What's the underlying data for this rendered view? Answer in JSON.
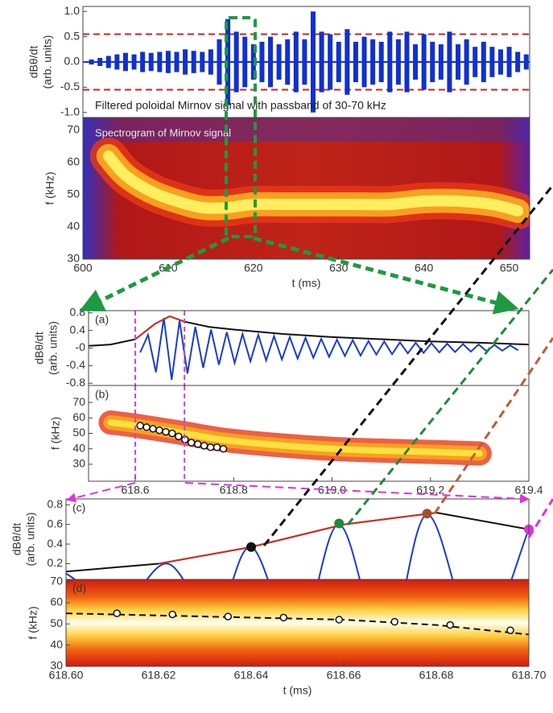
{
  "chart_data": [
    {
      "type": "signal",
      "ylabel": [
        "dBθ/dt",
        "(arb. units)"
      ],
      "annotation": "Filtered poloidal Mirnov signal with passband of 30-70 kHz",
      "xlim": [
        600,
        652.4
      ],
      "ylim": [
        -1.1,
        1.1
      ],
      "yticks": [
        {
          "value": 1.0,
          "label": "1.0"
        },
        {
          "value": 0.5,
          "label": "0.5"
        },
        {
          "value": 0.0,
          "label": "0.0"
        },
        {
          "value": -0.5,
          "label": "-0.5"
        },
        {
          "value": -1.0,
          "label": "-1.0"
        }
      ],
      "hlines": [
        0.55,
        -0.55
      ],
      "hline_color": "#cc2222",
      "series": [
        {
          "style": "bars",
          "color": "#1030d0",
          "x": [
            601,
            602,
            603,
            604,
            605,
            606,
            607,
            608,
            609,
            610,
            611,
            612,
            613,
            614,
            615,
            616,
            617,
            618,
            619,
            620,
            621,
            622,
            623,
            624,
            625,
            626,
            627,
            628,
            629,
            630,
            631,
            632,
            633,
            634,
            635,
            636,
            637,
            638,
            639,
            640,
            641,
            642,
            643,
            644,
            645,
            646,
            647,
            648,
            649,
            650,
            651,
            652
          ],
          "values": [
            0.05,
            0.08,
            0.12,
            0.15,
            0.18,
            0.15,
            0.2,
            0.18,
            0.2,
            0.22,
            0.2,
            0.25,
            0.22,
            0.2,
            0.25,
            0.45,
            0.85,
            0.6,
            0.5,
            0.35,
            0.4,
            0.5,
            0.35,
            0.45,
            0.6,
            0.45,
            1.0,
            0.6,
            0.55,
            0.4,
            0.65,
            0.4,
            0.5,
            0.45,
            0.4,
            0.6,
            0.45,
            0.6,
            0.35,
            0.55,
            0.4,
            0.35,
            0.6,
            0.35,
            0.45,
            0.3,
            0.4,
            0.3,
            0.25,
            0.3,
            0.2,
            0.15
          ]
        }
      ]
    },
    {
      "type": "spectrogram",
      "ylabel": [
        "f (kHz)"
      ],
      "annotation": "Spectrogram of Mirnov signal",
      "xlabel": "t (ms)",
      "xlim": [
        600,
        652.4
      ],
      "ylim": [
        30,
        74
      ],
      "xticks": [
        600,
        610,
        620,
        630,
        640,
        650
      ],
      "yticks": [
        30,
        40,
        50,
        60,
        70
      ],
      "series": [
        {
          "style": "band",
          "color": "#ffee60",
          "x": [
            603,
            605,
            608,
            611,
            614,
            617,
            620,
            624,
            628,
            632,
            636,
            640,
            644,
            648,
            651
          ],
          "values": [
            62,
            56,
            51,
            48,
            46,
            46,
            47,
            47,
            47,
            47,
            47,
            48,
            48,
            47,
            45
          ]
        }
      ]
    },
    {
      "type": "oscillation",
      "ylabel": [
        "dBθ/dt",
        "(arb. units)"
      ],
      "panel": "(a)",
      "xlim": [
        618.505,
        619.4
      ],
      "ylim": [
        -0.85,
        0.85
      ],
      "yticks": [
        0.8,
        0.4,
        {
          "value": 0,
          "label": "-0"
        },
        -0.4,
        -0.8
      ],
      "vlines": [
        618.6,
        618.7
      ],
      "vline_color": "#cc44cc",
      "series": [
        {
          "style": "line",
          "color": "#1a3ccc",
          "x": [
            618.61,
            618.626,
            618.642,
            618.658,
            618.674,
            618.69,
            618.706,
            618.722,
            618.738,
            618.754,
            618.77,
            618.786,
            618.802,
            618.818,
            618.834,
            618.85,
            618.866,
            618.882,
            618.898,
            618.914,
            618.93,
            618.946,
            618.962,
            618.978,
            618.994,
            619.01,
            619.026,
            619.042,
            619.058,
            619.074,
            619.09,
            619.106,
            619.122,
            619.138,
            619.154,
            619.17,
            619.186,
            619.202,
            619.218,
            619.234,
            619.25,
            619.266,
            619.282,
            619.298,
            619.314,
            619.33,
            619.346,
            619.362,
            619.378
          ],
          "values": [
            -0.1,
            0.3,
            -0.55,
            0.68,
            -0.72,
            0.62,
            -0.58,
            0.48,
            -0.45,
            0.42,
            -0.38,
            0.36,
            -0.34,
            0.32,
            -0.3,
            0.3,
            -0.28,
            0.27,
            -0.26,
            0.25,
            -0.24,
            0.23,
            -0.22,
            0.21,
            -0.2,
            0.19,
            -0.18,
            0.18,
            -0.17,
            0.16,
            -0.15,
            0.15,
            -0.14,
            0.13,
            -0.12,
            0.12,
            -0.11,
            0.11,
            -0.1,
            0.1,
            -0.09,
            0.09,
            -0.08,
            0.08,
            -0.07,
            0.07,
            -0.06,
            0.06,
            -0.05
          ]
        },
        {
          "style": "line",
          "color": "#111111",
          "x": [
            618.505,
            618.55,
            618.6,
            618.64,
            618.67,
            618.7,
            618.75,
            618.8,
            618.9,
            619.0,
            619.1,
            619.2,
            619.3,
            619.4
          ],
          "values": [
            0.05,
            0.08,
            0.2,
            0.55,
            0.72,
            0.6,
            0.48,
            0.42,
            0.32,
            0.25,
            0.2,
            0.15,
            0.12,
            0.08
          ]
        },
        {
          "style": "line",
          "color": "#cc3322",
          "x": [
            618.6,
            618.64,
            618.67,
            618.7
          ],
          "values": [
            0.2,
            0.55,
            0.72,
            0.6
          ]
        }
      ]
    },
    {
      "type": "ridge",
      "ylabel": [
        "f (kHz)"
      ],
      "panel": "(b)",
      "xlim": [
        618.505,
        619.4
      ],
      "ylim": [
        19,
        81
      ],
      "xticks": [
        618.6,
        618.8,
        {
          "value": 619.0,
          "label": "619.0"
        },
        619.2,
        619.4
      ],
      "yticks": [
        30,
        40,
        50,
        60,
        70
      ],
      "vlines": [
        618.6,
        618.7
      ],
      "vline_color": "#cc44cc",
      "series": [
        {
          "style": "band",
          "color": "#ffe040",
          "x": [
            618.55,
            618.6,
            618.7,
            618.8,
            619.0,
            619.2,
            619.3
          ],
          "values": [
            57,
            55,
            50,
            45,
            40,
            38,
            37
          ]
        },
        {
          "style": "circles",
          "color": "#111111",
          "x": [
            618.61,
            618.623,
            618.636,
            618.649,
            618.662,
            618.675,
            618.688,
            618.701,
            618.714,
            618.727,
            618.74,
            618.753,
            618.766,
            618.779
          ],
          "values": [
            55,
            54,
            53,
            52,
            51,
            50,
            48,
            46,
            44,
            43,
            42,
            41,
            41,
            40
          ]
        }
      ]
    },
    {
      "type": "oscillation",
      "ylabel": [
        "dBθ/dt",
        "(arb. units)"
      ],
      "panel": "(c)",
      "xlim": [
        618.6,
        618.7
      ],
      "ylim": [
        0.04,
        0.86
      ],
      "yticks": [
        0.8,
        0.6,
        0.4,
        0.2
      ],
      "series": [
        {
          "style": "smooth",
          "color": "#1a3ccc",
          "x": [
            618.6,
            618.612,
            618.622,
            618.632,
            618.64,
            618.65,
            618.659,
            618.669,
            618.678,
            618.689,
            618.7
          ],
          "values": [
            0.1,
            -0.2,
            0.2,
            -0.37,
            0.37,
            -0.6,
            0.6,
            -0.7,
            0.7,
            -0.6,
            0.55
          ]
        },
        {
          "style": "line",
          "color": "#111111",
          "x": [
            618.6,
            618.62,
            618.64,
            618.66,
            618.68,
            618.7
          ],
          "values": [
            0.12,
            0.2,
            0.37,
            0.6,
            0.72,
            0.55
          ]
        },
        {
          "style": "line",
          "color": "#cc3322",
          "x": [
            618.62,
            618.64,
            618.66,
            618.68
          ],
          "values": [
            0.2,
            0.37,
            0.6,
            0.72
          ]
        },
        {
          "style": "dots",
          "x": [
            618.64,
            618.659,
            618.678,
            618.7
          ],
          "values": [
            0.37,
            0.61,
            0.71,
            0.55
          ],
          "colors": [
            "#111111",
            "#1e8a3a",
            "#a0502a",
            "#dd33dd"
          ]
        }
      ]
    },
    {
      "type": "ridge",
      "ylabel": [
        "f (kHz)"
      ],
      "panel": "(d)",
      "xlabel": "t (ms)",
      "xlim": [
        618.6,
        618.7
      ],
      "ylim": [
        30,
        71
      ],
      "xticks": [
        {
          "value": 618.6,
          "label": "618.60"
        },
        {
          "value": 618.62,
          "label": "618.62"
        },
        {
          "value": 618.64,
          "label": "618.64"
        },
        {
          "value": 618.66,
          "label": "618.66"
        },
        {
          "value": 618.68,
          "label": "618.68"
        },
        {
          "value": 618.7,
          "label": "618.70"
        }
      ],
      "yticks": [
        30,
        40,
        50,
        60,
        70
      ],
      "series": [
        {
          "style": "dashed",
          "color": "#111111",
          "x": [
            618.6,
            618.62,
            618.64,
            618.66,
            618.68,
            618.7
          ],
          "values": [
            55,
            54,
            53,
            52,
            49.5,
            45
          ]
        },
        {
          "style": "circles",
          "color": "#111111",
          "x": [
            618.611,
            618.623,
            618.635,
            618.647,
            618.659,
            618.671,
            618.683,
            618.696
          ],
          "values": [
            55,
            54.5,
            53.5,
            53,
            52,
            51,
            49.5,
            47
          ]
        }
      ]
    }
  ]
}
